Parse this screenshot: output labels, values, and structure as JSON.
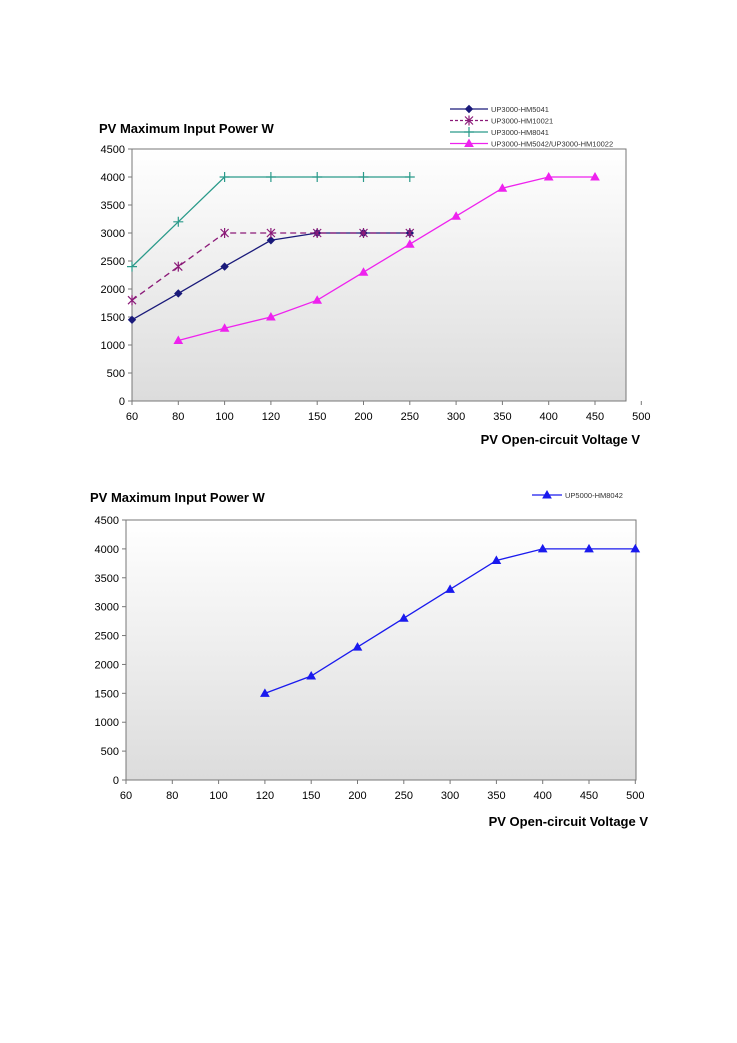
{
  "chart_data": [
    {
      "type": "line",
      "title": "PV Maximum Input Power W",
      "xlabel": "PV Open-circuit Voltage V",
      "ylabel": "",
      "categories": [
        "60",
        "80",
        "100",
        "120",
        "150",
        "200",
        "250",
        "300",
        "350",
        "400",
        "450",
        "500"
      ],
      "ylim": [
        0,
        4500
      ],
      "yticks": [
        0,
        500,
        1000,
        1500,
        2000,
        2500,
        3000,
        3500,
        4000,
        4500
      ],
      "legend_position": "top-right",
      "series": [
        {
          "name": "UP3000-HM5041",
          "color": "#1a1a7a",
          "marker": "diamond",
          "dash": "",
          "values": [
            1450,
            1920,
            2400,
            2870,
            3000,
            3000,
            3000,
            null,
            null,
            null,
            null,
            null
          ]
        },
        {
          "name": "UP3000-HM10021",
          "color": "#8b1a78",
          "marker": "asterisk",
          "dash": "6,4",
          "values": [
            1800,
            2400,
            3000,
            3000,
            3000,
            3000,
            3000,
            null,
            null,
            null,
            null,
            null
          ]
        },
        {
          "name": "UP3000-HM8041",
          "color": "#2a9a8a",
          "marker": "plus",
          "dash": "",
          "values": [
            2400,
            3200,
            4000,
            4000,
            4000,
            4000,
            4000,
            null,
            null,
            null,
            null,
            null
          ]
        },
        {
          "name": "UP3000-HM5042/UP3000-HM10022",
          "color": "#ee22ee",
          "marker": "triangle",
          "dash": "",
          "values": [
            null,
            1080,
            1300,
            1500,
            1800,
            2300,
            2800,
            3300,
            3800,
            4000,
            4000,
            null
          ]
        }
      ]
    },
    {
      "type": "line",
      "title": "PV Maximum Input Power W",
      "xlabel": "PV Open-circuit Voltage V",
      "ylabel": "",
      "categories": [
        "60",
        "80",
        "100",
        "120",
        "150",
        "200",
        "250",
        "300",
        "350",
        "400",
        "450",
        "500"
      ],
      "ylim": [
        0,
        4500
      ],
      "yticks": [
        0,
        500,
        1000,
        1500,
        2000,
        2500,
        3000,
        3500,
        4000,
        4500
      ],
      "legend_position": "top-right",
      "series": [
        {
          "name": "UP5000-HM8042",
          "color": "#1a1aee",
          "marker": "triangle",
          "dash": "",
          "values": [
            null,
            null,
            null,
            1500,
            1800,
            2300,
            2800,
            3300,
            3800,
            4000,
            4000,
            4000
          ]
        }
      ]
    }
  ]
}
